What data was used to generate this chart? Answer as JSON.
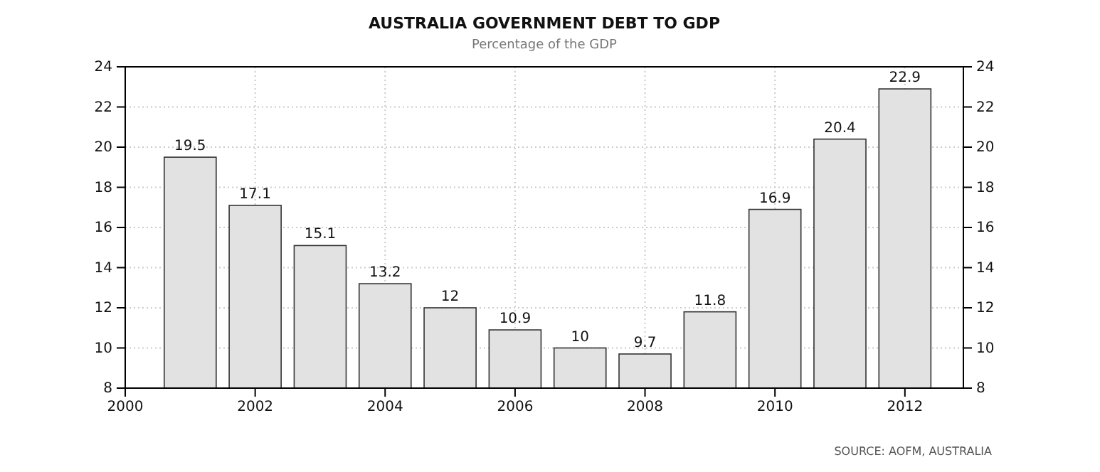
{
  "chart_data": {
    "type": "bar",
    "title": "AUSTRALIA GOVERNMENT DEBT TO GDP",
    "subtitle": "Percentage of the GDP",
    "x": [
      2001,
      2002,
      2003,
      2004,
      2005,
      2006,
      2007,
      2008,
      2009,
      2010,
      2011,
      2012
    ],
    "values": [
      19.5,
      17.1,
      15.1,
      13.2,
      12,
      10.9,
      10,
      9.7,
      11.8,
      16.9,
      20.4,
      22.9
    ],
    "color": "#e2e2e2",
    "data_labels": true,
    "xlim": [
      2000,
      2012.9
    ],
    "xticks": [
      2000,
      2002,
      2004,
      2006,
      2008,
      2010,
      2012
    ],
    "ylim": [
      8,
      24
    ],
    "yticks": [
      8,
      10,
      12,
      14,
      16,
      18,
      20,
      22,
      24
    ],
    "y2lim": [
      8,
      24
    ],
    "y2ticks": [
      8,
      10,
      12,
      14,
      16,
      18,
      20,
      22,
      24
    ],
    "grid": true,
    "annotations": [
      "SOURCE: AOFM, AUSTRALIA"
    ]
  }
}
